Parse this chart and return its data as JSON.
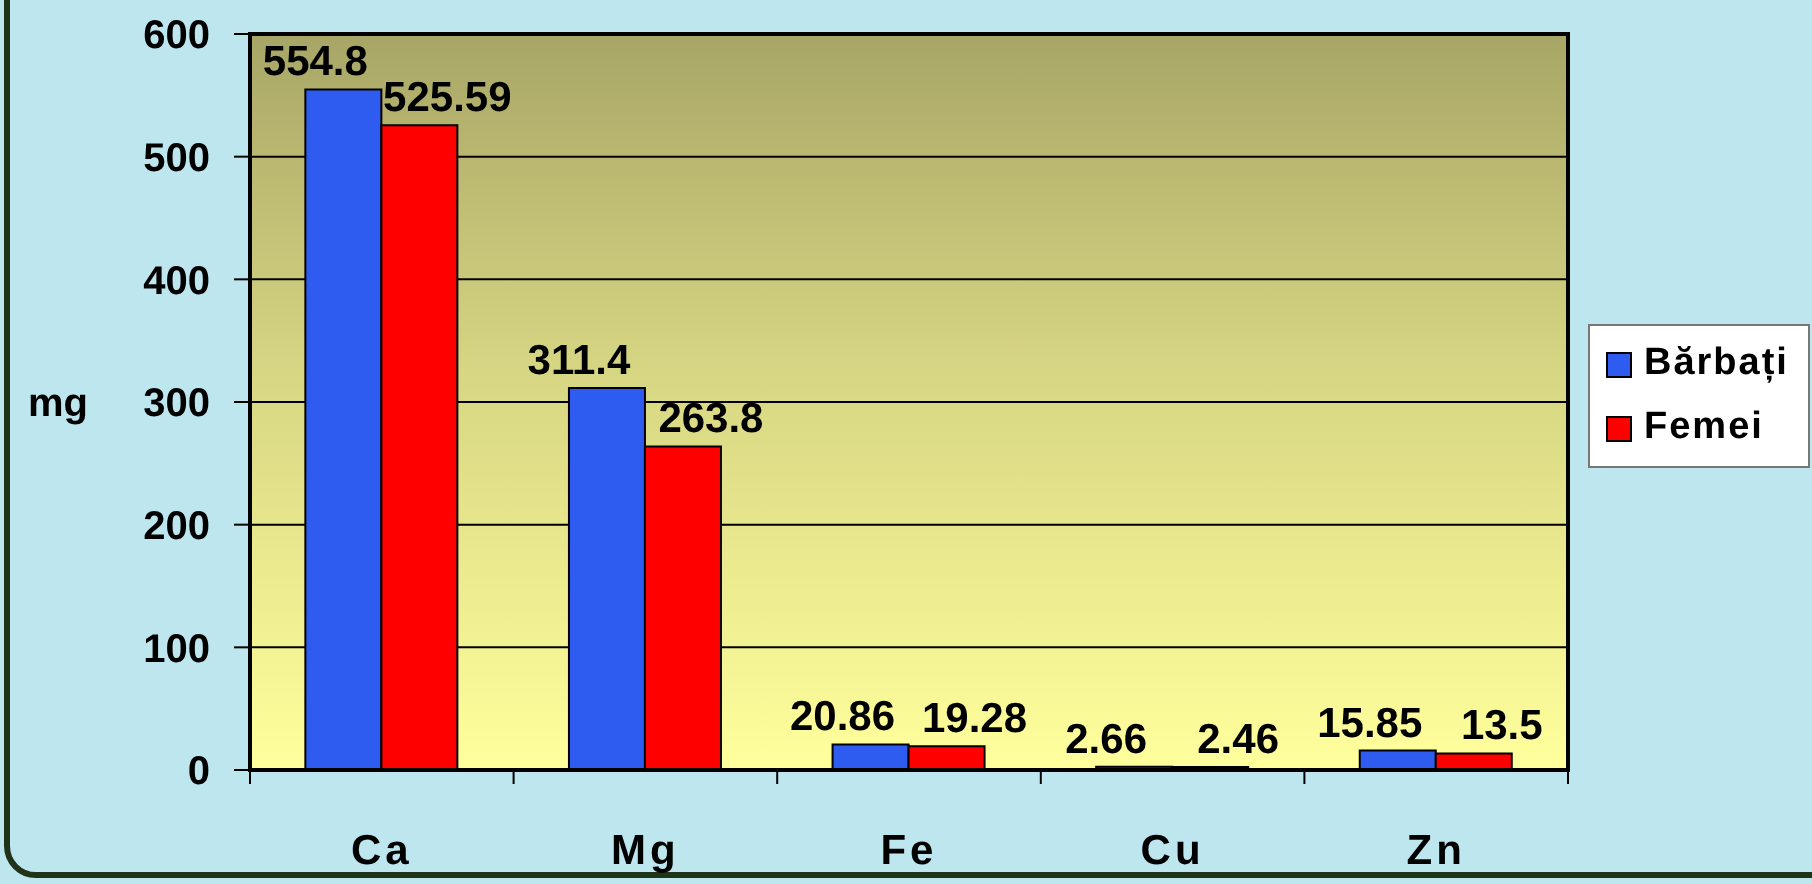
{
  "chart_data": {
    "type": "bar",
    "categories": [
      "Ca",
      "Mg",
      "Fe",
      "Cu",
      "Zn"
    ],
    "series": [
      {
        "name": "Bărbați",
        "color": "#2f5cf0",
        "values": [
          554.8,
          311.4,
          20.86,
          2.66,
          15.85
        ]
      },
      {
        "name": "Femei",
        "color": "#ff0000",
        "values": [
          525.59,
          263.8,
          19.28,
          2.46,
          13.5
        ]
      }
    ],
    "ylabel": "mg",
    "ylim": [
      0,
      600
    ],
    "yticks": [
      0,
      100,
      200,
      300,
      400,
      500,
      600
    ],
    "grid": "y",
    "legend": "right",
    "data_labels": true
  }
}
